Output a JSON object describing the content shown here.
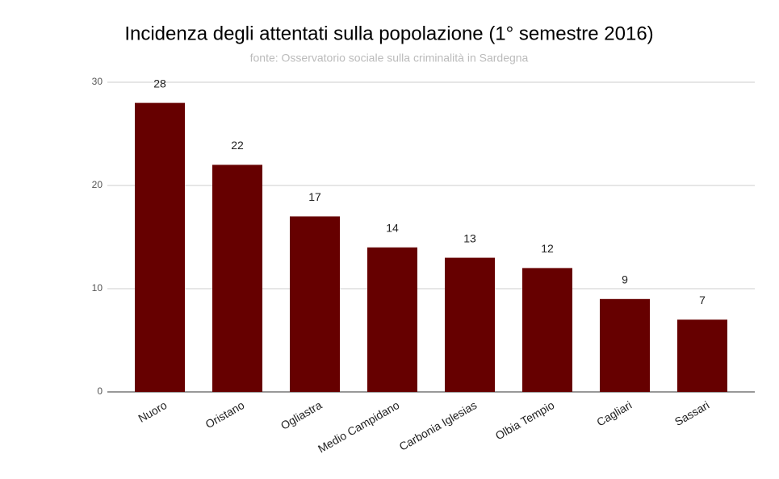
{
  "chart_data": {
    "type": "bar",
    "title": "Incidenza degli attentati sulla popolazione (1° semestre 2016)",
    "subtitle": "fonte: Osservatorio sociale sulla criminalità in Sardegna",
    "categories": [
      "Nuoro",
      "Oristano",
      "Ogliastra",
      "Medio Campidano",
      "Carbonia Iglesias",
      "Olbia Tempio",
      "Cagliari",
      "Sassari"
    ],
    "values": [
      28,
      22,
      17,
      14,
      13,
      12,
      9,
      7
    ],
    "color": "#660000",
    "ylim": [
      0,
      30
    ],
    "yticks": [
      0,
      10,
      20,
      30
    ],
    "grid": true
  }
}
